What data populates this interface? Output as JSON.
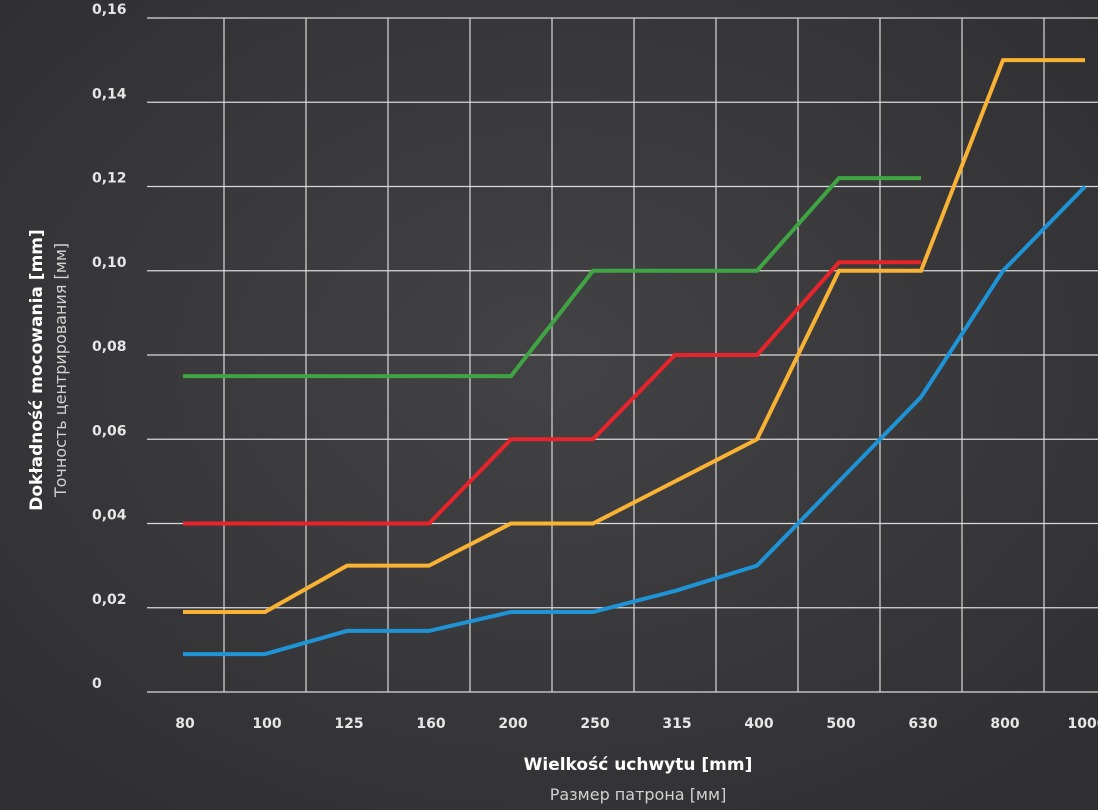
{
  "chart_data": {
    "type": "line",
    "xlabel": "Wielkość uchwytu [mm]",
    "xlabel_secondary": "Размер патрона [мм]",
    "ylabel": "Dokładność mocowania [mm]",
    "ylabel_secondary": "Точность центрирования [мм]",
    "categories": [
      "80",
      "100",
      "125",
      "160",
      "200",
      "250",
      "315",
      "400",
      "500",
      "630",
      "800",
      "1000"
    ],
    "y_tick_labels": [
      "0",
      "0,02",
      "0,04",
      "0,06",
      "0,08",
      "0,10",
      "0,12",
      "0,14",
      "0,16"
    ],
    "ylim": [
      0,
      0.16
    ],
    "grid": true,
    "series": [
      {
        "color": "#3fa542",
        "values": [
          0.075,
          0.075,
          0.075,
          0.075,
          0.075,
          0.1,
          0.1,
          0.1,
          0.122,
          0.122,
          null,
          null
        ]
      },
      {
        "color": "#e8232a",
        "values": [
          0.04,
          0.04,
          0.04,
          0.04,
          0.06,
          0.06,
          0.08,
          0.08,
          0.102,
          0.102,
          null,
          null
        ]
      },
      {
        "color": "#f9b233",
        "values": [
          0.019,
          0.019,
          0.03,
          0.03,
          0.04,
          0.04,
          0.05,
          0.06,
          0.1,
          0.1,
          0.15,
          0.15
        ]
      },
      {
        "color": "#1e94d6",
        "values": [
          0.009,
          0.009,
          0.0145,
          0.0145,
          0.019,
          0.019,
          0.024,
          0.03,
          0.05,
          0.07,
          0.1,
          0.12
        ]
      }
    ]
  }
}
